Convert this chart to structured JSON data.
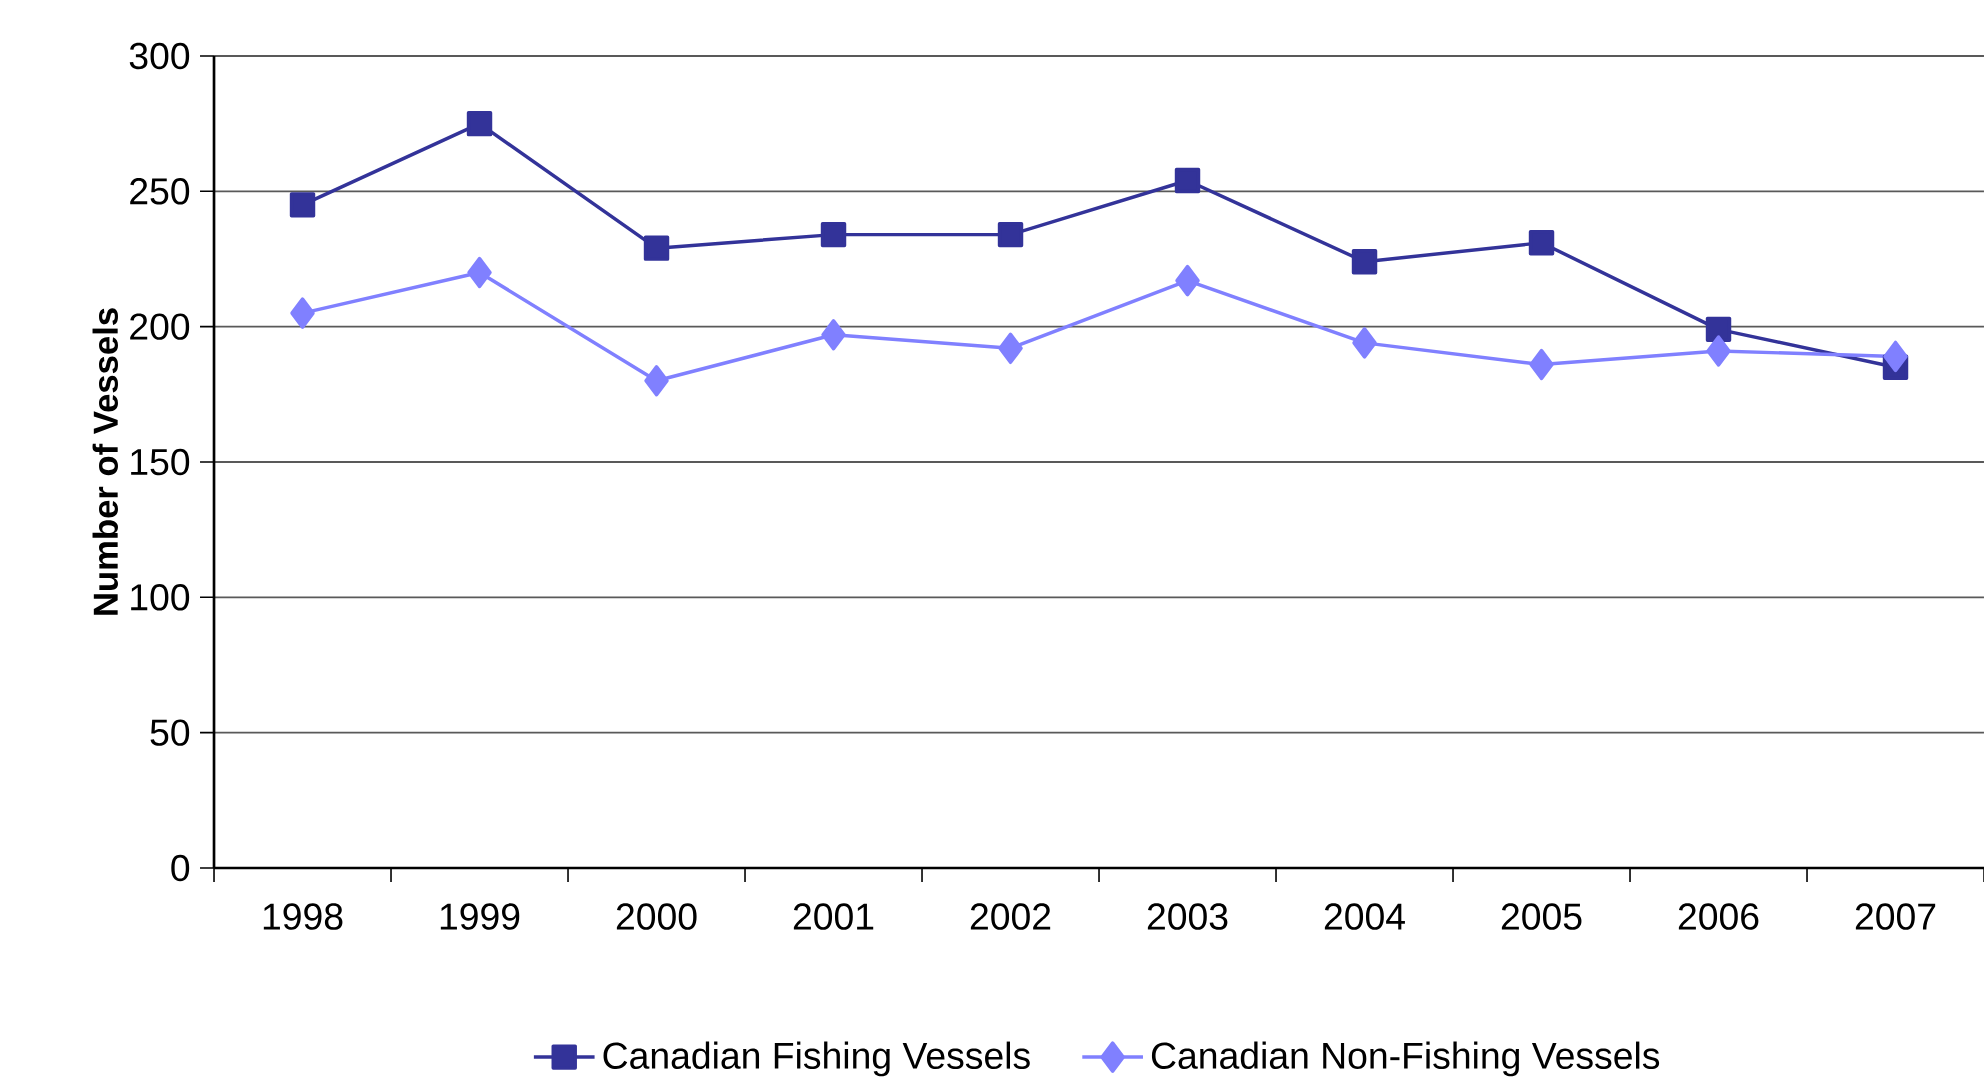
{
  "chart_data": {
    "type": "line",
    "ylabel": "**Number of Vessels**",
    "categories": [
      "1998",
      "1999",
      "2000",
      "2001",
      "2002",
      "2003",
      "2004",
      "2005",
      "2006",
      "2007"
    ],
    "series": [
      {
        "name": "Canadian Fishing Vessels",
        "color": "#333399",
        "marker": "square",
        "values": [
          245,
          275,
          229,
          234,
          234,
          254,
          224,
          231,
          199,
          185
        ]
      },
      {
        "name": "Canadian Non-Fishing Vessels",
        "color": "#8080ff",
        "marker": "diamond",
        "values": [
          205,
          220,
          180,
          197,
          192,
          217,
          194,
          186,
          191,
          189
        ]
      }
    ],
    "ylim": [
      0,
      300
    ],
    "yticks": [
      0,
      50,
      100,
      150,
      200,
      250,
      300
    ],
    "grid": "y",
    "legend": "bottom",
    "line_style": "solid"
  }
}
